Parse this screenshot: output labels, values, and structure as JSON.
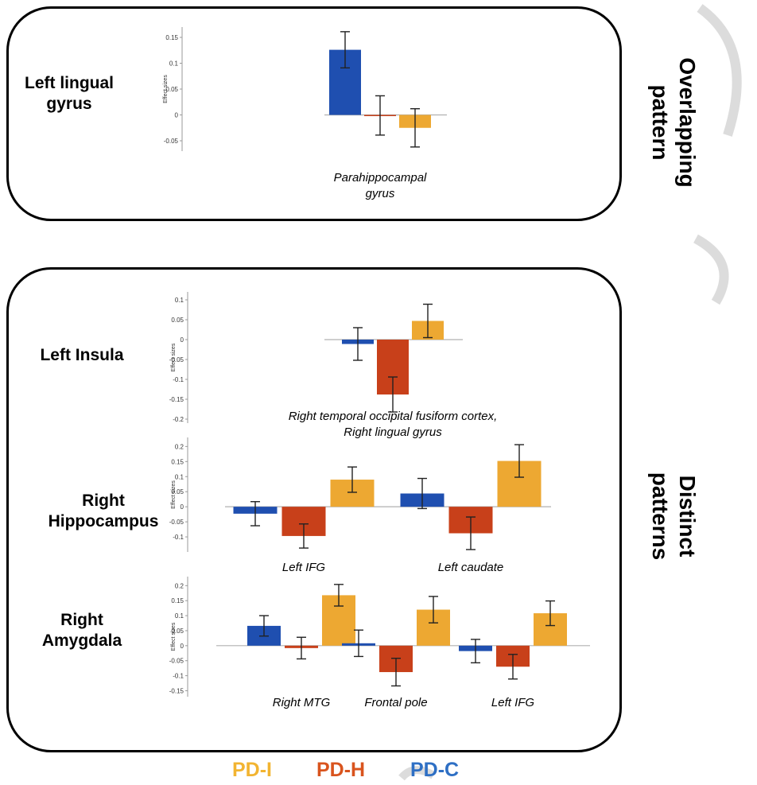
{
  "region_labels": {
    "left_lingual": "Left lingual\ngyrus",
    "left_insula": "Left Insula",
    "right_hippocampus": "Right\nHippocampus",
    "right_amygdala": "Right\nAmygdala"
  },
  "side_labels": {
    "overlapping": "Overlapping\npattern",
    "distinct": "Distinct\npatterns"
  },
  "legend": [
    {
      "label": "PD-I",
      "color": "#F2B431"
    },
    {
      "label": "PD-H",
      "color": "#D9541E"
    },
    {
      "label": "PD-C",
      "color": "#2E6FC4"
    }
  ],
  "colors": {
    "PD-C": "#1F4FB0",
    "PD-H": "#C8401A",
    "PD-I": "#EDA832"
  },
  "chart_data": [
    {
      "type": "bar",
      "ylabel": "Effect sizes",
      "ylim": [
        -0.07,
        0.17
      ],
      "yticks": [
        -0.05,
        0,
        0.05,
        0.1,
        0.15
      ],
      "ytick_labels": [
        "-0.05",
        "0",
        "0.05",
        "0.1",
        "0.15"
      ],
      "groups": [
        {
          "label": "Parahippocampal\ngyrus",
          "bars": [
            {
              "series": "PD-C",
              "value": 0.126,
              "err": 0.035
            },
            {
              "series": "PD-H",
              "value": -0.001,
              "err": 0.038
            },
            {
              "series": "PD-I",
              "value": -0.025,
              "err": 0.037
            }
          ]
        }
      ]
    },
    {
      "type": "bar",
      "ylabel": "Effect sizes",
      "ylim": [
        -0.21,
        0.12
      ],
      "yticks": [
        -0.2,
        -0.15,
        -0.1,
        -0.05,
        0,
        0.05,
        0.1
      ],
      "ytick_labels": [
        "-0.2",
        "-0.15",
        "-0.1",
        "-0.05",
        "0",
        "0.05",
        "0.1"
      ],
      "groups": [
        {
          "label": "Right temporal occipital fusiform cortex,\nRight lingual gyrus",
          "bars": [
            {
              "series": "PD-C",
              "value": -0.011,
              "err": 0.041
            },
            {
              "series": "PD-H",
              "value": -0.138,
              "err": 0.044
            },
            {
              "series": "PD-I",
              "value": 0.047,
              "err": 0.042
            }
          ]
        }
      ]
    },
    {
      "type": "bar",
      "ylabel": "Effect sizes",
      "ylim": [
        -0.15,
        0.23
      ],
      "yticks": [
        -0.1,
        -0.05,
        0,
        0.05,
        0.1,
        0.15,
        0.2
      ],
      "ytick_labels": [
        "-0.1",
        "-0.05",
        "0",
        "0.05",
        "0.1",
        "0.15",
        "0.2"
      ],
      "groups": [
        {
          "label": "Left IFG",
          "bars": [
            {
              "series": "PD-C",
              "value": -0.023,
              "err": 0.04
            },
            {
              "series": "PD-H",
              "value": -0.097,
              "err": 0.04
            },
            {
              "series": "PD-I",
              "value": 0.09,
              "err": 0.042
            }
          ]
        },
        {
          "label": "Left caudate",
          "bars": [
            {
              "series": "PD-C",
              "value": 0.044,
              "err": 0.05
            },
            {
              "series": "PD-H",
              "value": -0.088,
              "err": 0.054
            },
            {
              "series": "PD-I",
              "value": 0.152,
              "err": 0.054
            }
          ]
        }
      ]
    },
    {
      "type": "bar",
      "ylabel": "Effect sizes",
      "ylim": [
        -0.17,
        0.23
      ],
      "yticks": [
        -0.15,
        -0.1,
        -0.05,
        0,
        0.05,
        0.1,
        0.15,
        0.2
      ],
      "ytick_labels": [
        "-0.15",
        "-0.1",
        "-0.05",
        "0",
        "0.05",
        "0.1",
        "0.15",
        "0.2"
      ],
      "groups": [
        {
          "label": "Right MTG",
          "bars": [
            {
              "series": "PD-C",
              "value": 0.066,
              "err": 0.034
            },
            {
              "series": "PD-H",
              "value": -0.008,
              "err": 0.036
            },
            {
              "series": "PD-I",
              "value": 0.168,
              "err": 0.036
            }
          ]
        },
        {
          "label": "Frontal pole",
          "bars": [
            {
              "series": "PD-C",
              "value": 0.008,
              "err": 0.044
            },
            {
              "series": "PD-H",
              "value": -0.088,
              "err": 0.046
            },
            {
              "series": "PD-I",
              "value": 0.12,
              "err": 0.044
            }
          ]
        },
        {
          "label": "Left IFG",
          "bars": [
            {
              "series": "PD-C",
              "value": -0.018,
              "err": 0.039
            },
            {
              "series": "PD-H",
              "value": -0.07,
              "err": 0.041
            },
            {
              "series": "PD-I",
              "value": 0.108,
              "err": 0.041
            }
          ]
        }
      ]
    }
  ]
}
